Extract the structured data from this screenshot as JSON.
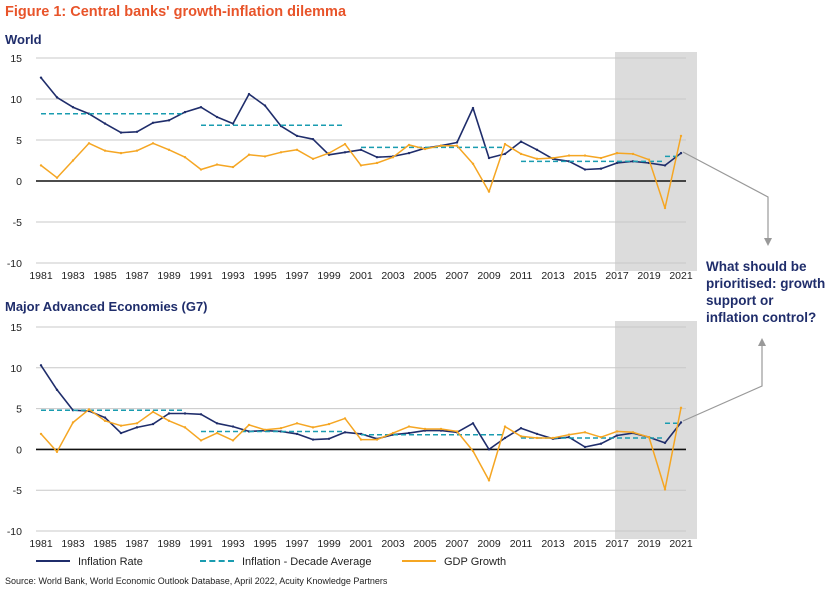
{
  "figure_title": "Figure 1: Central banks' growth-inflation dilemma",
  "annotation": "What should be prioritised: growth support or inflation control?",
  "source": "Source: World Bank, World Economic Outlook Database, April 2022, Acuity Knowledge Partners",
  "legend": [
    {
      "label": "Inflation Rate",
      "color": "#1f2d6b",
      "style": "solid"
    },
    {
      "label": "Inflation - Decade Average",
      "color": "#1a9cb0",
      "style": "dashed"
    },
    {
      "label": "GDP Growth",
      "color": "#f5a623",
      "style": "solid"
    }
  ],
  "colors": {
    "inflation": "#1f2d6b",
    "decade_avg": "#1a9cb0",
    "gdp": "#f5a623",
    "shade": "#dcdcdc",
    "arrow": "#999999"
  },
  "chart_data": [
    {
      "type": "line",
      "title": "World",
      "x": [
        1981,
        1982,
        1983,
        1984,
        1985,
        1986,
        1987,
        1988,
        1989,
        1990,
        1991,
        1992,
        1993,
        1994,
        1995,
        1996,
        1997,
        1998,
        1999,
        2000,
        2001,
        2002,
        2003,
        2004,
        2005,
        2006,
        2007,
        2008,
        2009,
        2010,
        2011,
        2012,
        2013,
        2014,
        2015,
        2016,
        2017,
        2018,
        2019,
        2020,
        2021
      ],
      "xticks": [
        1981,
        1983,
        1985,
        1987,
        1989,
        1991,
        1993,
        1995,
        1997,
        1999,
        2001,
        2003,
        2005,
        2007,
        2009,
        2011,
        2013,
        2015,
        2017,
        2019,
        2021
      ],
      "ylim": [
        -10,
        15
      ],
      "yticks": [
        -10,
        -5,
        0,
        5,
        10,
        15
      ],
      "shaded_range": [
        2018,
        2022
      ],
      "series": [
        {
          "name": "Inflation Rate",
          "values": [
            12.6,
            10.2,
            9.0,
            8.2,
            7.0,
            5.9,
            6.0,
            7.1,
            7.4,
            8.4,
            9.0,
            7.8,
            7.0,
            10.6,
            9.2,
            6.7,
            5.5,
            5.1,
            3.2,
            3.5,
            3.8,
            2.9,
            3.0,
            3.4,
            4.0,
            4.3,
            4.7,
            8.9,
            2.8,
            3.3,
            4.8,
            3.8,
            2.7,
            2.4,
            1.4,
            1.5,
            2.2,
            2.4,
            2.2,
            1.9,
            3.4
          ]
        },
        {
          "name": "Inflation - Decade Average",
          "segments": [
            {
              "from": 1981,
              "to": 1990,
              "value": 8.2
            },
            {
              "from": 1991,
              "to": 2000,
              "value": 6.8
            },
            {
              "from": 2001,
              "to": 2010,
              "value": 4.1
            },
            {
              "from": 2011,
              "to": 2020,
              "value": 2.4
            },
            {
              "from": 2020,
              "to": 2021,
              "value": 3.0
            }
          ]
        },
        {
          "name": "GDP Growth",
          "values": [
            1.9,
            0.4,
            2.5,
            4.6,
            3.7,
            3.4,
            3.7,
            4.6,
            3.8,
            2.9,
            1.4,
            2.0,
            1.7,
            3.2,
            3.0,
            3.5,
            3.8,
            2.7,
            3.4,
            4.5,
            1.9,
            2.2,
            2.9,
            4.4,
            3.9,
            4.3,
            4.3,
            2.1,
            -1.3,
            4.5,
            3.3,
            2.7,
            2.8,
            3.1,
            3.1,
            2.8,
            3.4,
            3.3,
            2.6,
            -3.3,
            5.5
          ]
        }
      ]
    },
    {
      "type": "line",
      "title": "Major Advanced Economies (G7)",
      "x": [
        1981,
        1982,
        1983,
        1984,
        1985,
        1986,
        1987,
        1988,
        1989,
        1990,
        1991,
        1992,
        1993,
        1994,
        1995,
        1996,
        1997,
        1998,
        1999,
        2000,
        2001,
        2002,
        2003,
        2004,
        2005,
        2006,
        2007,
        2008,
        2009,
        2010,
        2011,
        2012,
        2013,
        2014,
        2015,
        2016,
        2017,
        2018,
        2019,
        2020,
        2021
      ],
      "xticks": [
        1981,
        1983,
        1985,
        1987,
        1989,
        1991,
        1993,
        1995,
        1997,
        1999,
        2001,
        2003,
        2005,
        2007,
        2009,
        2011,
        2013,
        2015,
        2017,
        2019,
        2021
      ],
      "ylim": [
        -10,
        15
      ],
      "yticks": [
        -10,
        -5,
        0,
        5,
        10,
        15
      ],
      "shaded_range": [
        2018,
        2022
      ],
      "series": [
        {
          "name": "Inflation Rate",
          "values": [
            10.3,
            7.3,
            4.8,
            4.7,
            3.9,
            2.0,
            2.7,
            3.1,
            4.4,
            4.4,
            4.3,
            3.2,
            2.8,
            2.2,
            2.3,
            2.2,
            1.9,
            1.2,
            1.3,
            2.1,
            1.9,
            1.3,
            1.8,
            2.0,
            2.3,
            2.3,
            2.1,
            3.2,
            0.0,
            1.4,
            2.6,
            1.9,
            1.3,
            1.5,
            0.3,
            0.7,
            1.7,
            2.0,
            1.5,
            0.8,
            3.3
          ]
        },
        {
          "name": "Inflation - Decade Average",
          "segments": [
            {
              "from": 1981,
              "to": 1990,
              "value": 4.8
            },
            {
              "from": 1991,
              "to": 2000,
              "value": 2.2
            },
            {
              "from": 2001,
              "to": 2010,
              "value": 1.8
            },
            {
              "from": 2011,
              "to": 2020,
              "value": 1.4
            },
            {
              "from": 2020,
              "to": 2021,
              "value": 3.2
            }
          ]
        },
        {
          "name": "GDP Growth",
          "values": [
            1.9,
            -0.3,
            3.3,
            4.9,
            3.5,
            2.9,
            3.2,
            4.6,
            3.5,
            2.7,
            1.1,
            2.0,
            1.1,
            3.0,
            2.4,
            2.6,
            3.2,
            2.7,
            3.1,
            3.8,
            1.2,
            1.2,
            2.0,
            2.8,
            2.5,
            2.5,
            2.2,
            -0.2,
            -3.8,
            2.8,
            1.6,
            1.4,
            1.4,
            1.8,
            2.1,
            1.5,
            2.2,
            2.1,
            1.5,
            -4.9,
            5.1
          ]
        }
      ]
    }
  ]
}
